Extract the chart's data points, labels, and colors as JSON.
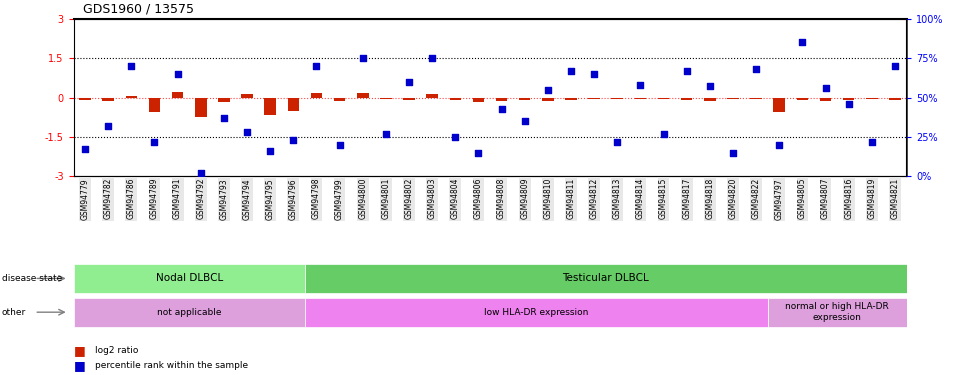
{
  "title": "GDS1960 / 13575",
  "samples": [
    "GSM94779",
    "GSM94782",
    "GSM94786",
    "GSM94789",
    "GSM94791",
    "GSM94792",
    "GSM94793",
    "GSM94794",
    "GSM94795",
    "GSM94796",
    "GSM94798",
    "GSM94799",
    "GSM94800",
    "GSM94801",
    "GSM94802",
    "GSM94803",
    "GSM94804",
    "GSM94806",
    "GSM94808",
    "GSM94809",
    "GSM94810",
    "GSM94811",
    "GSM94812",
    "GSM94813",
    "GSM94814",
    "GSM94815",
    "GSM94817",
    "GSM94818",
    "GSM94820",
    "GSM94822",
    "GSM94797",
    "GSM94805",
    "GSM94807",
    "GSM94816",
    "GSM94819",
    "GSM94821"
  ],
  "log2_ratio": [
    -0.1,
    -0.15,
    0.05,
    -0.55,
    0.22,
    -0.75,
    -0.18,
    0.12,
    -0.65,
    -0.52,
    0.18,
    -0.12,
    0.18,
    -0.06,
    -0.1,
    0.15,
    -0.1,
    -0.18,
    -0.14,
    -0.09,
    -0.12,
    -0.09,
    -0.06,
    -0.06,
    -0.07,
    -0.05,
    -0.09,
    -0.12,
    -0.06,
    -0.07,
    -0.55,
    -0.08,
    -0.14,
    -0.09,
    -0.06,
    -0.08
  ],
  "percentile": [
    17,
    32,
    70,
    22,
    65,
    2,
    37,
    28,
    16,
    23,
    70,
    20,
    75,
    27,
    60,
    75,
    25,
    15,
    43,
    35,
    55,
    67,
    65,
    22,
    58,
    27,
    67,
    57,
    15,
    68,
    20,
    85,
    56,
    46,
    22,
    70
  ],
  "ylim_left": [
    -3,
    3
  ],
  "ylim_right": [
    0,
    100
  ],
  "disease_state_groups": [
    {
      "label": "Nodal DLBCL",
      "start": 0,
      "end": 10,
      "color": "#90EE90"
    },
    {
      "label": "Testicular DLBCL",
      "start": 10,
      "end": 36,
      "color": "#66CC66"
    }
  ],
  "other_groups": [
    {
      "label": "not applicable",
      "start": 0,
      "end": 10,
      "color": "#DDA0DD"
    },
    {
      "label": "low HLA-DR expression",
      "start": 10,
      "end": 30,
      "color": "#EE82EE"
    },
    {
      "label": "normal or high HLA-DR\nexpression",
      "start": 30,
      "end": 36,
      "color": "#DDA0DD"
    }
  ],
  "bar_color": "#CC2200",
  "scatter_color": "#0000CC",
  "zero_line_color": "#FF4444",
  "background_color": "#ffffff"
}
